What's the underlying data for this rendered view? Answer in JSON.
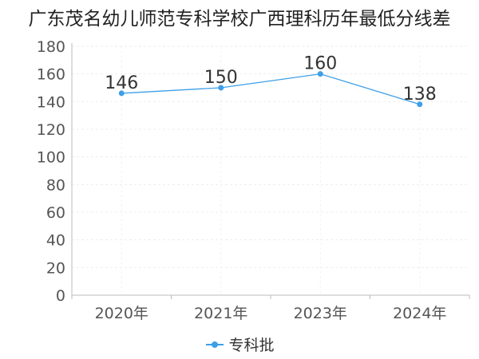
{
  "chart_data": {
    "type": "line",
    "title": "广东茂名幼儿师范专科学校广西理科历年最低分线差",
    "categories": [
      "2020年",
      "2021年",
      "2023年",
      "2024年"
    ],
    "series": [
      {
        "name": "专科批",
        "values": [
          146,
          150,
          160,
          138
        ],
        "color": "#3d9fe8"
      }
    ],
    "ylim": [
      0,
      180
    ],
    "yticks": [
      0,
      20,
      40,
      60,
      80,
      100,
      120,
      140,
      160,
      180
    ],
    "grid": true,
    "data_labels": true,
    "legend_position": "bottom"
  }
}
